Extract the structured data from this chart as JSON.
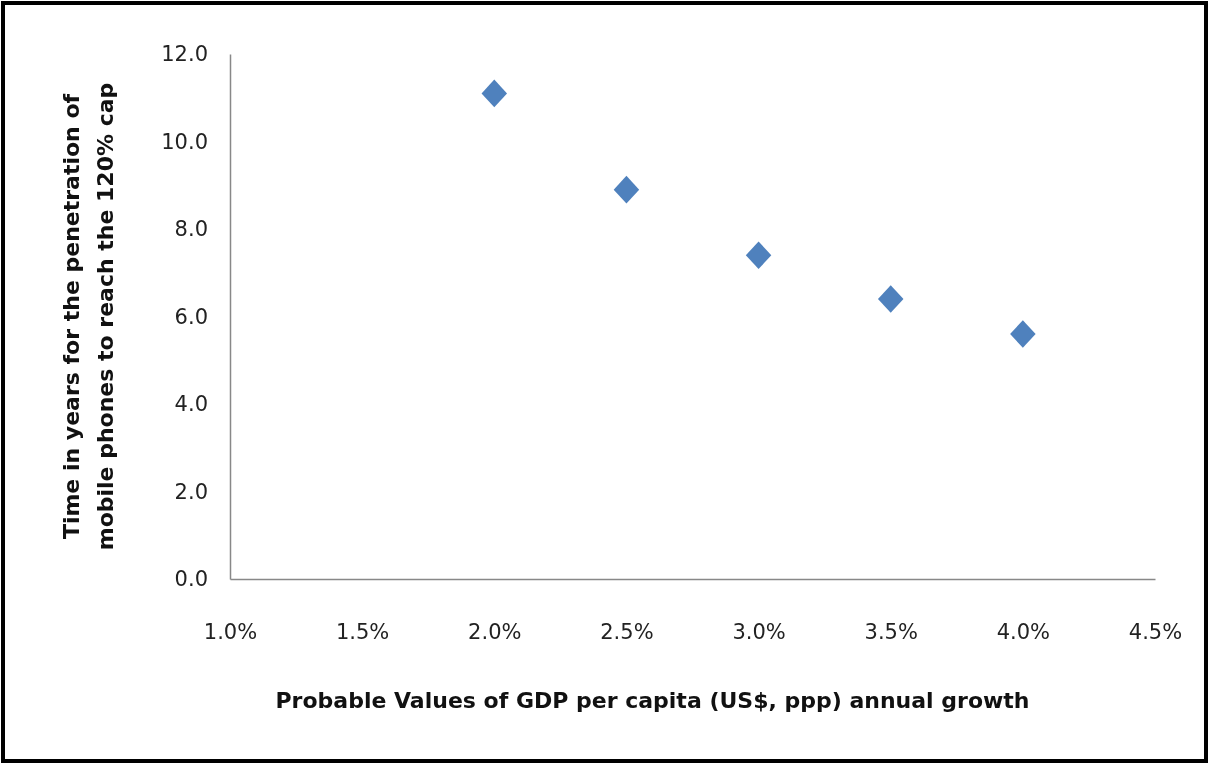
{
  "chart_data": {
    "type": "scatter",
    "xlabel": "Probable Values of GDP per capita (US$, ppp) annual growth",
    "ylabel": "Time in years for the penetration of mobile phones to reach the 120% cap",
    "x": [
      2.0,
      2.5,
      3.0,
      3.5,
      4.0
    ],
    "series": [
      {
        "color": "#4f81bd",
        "values": [
          11.1,
          8.9,
          7.4,
          6.4,
          5.6
        ]
      }
    ],
    "marker": "diamond",
    "xlim": [
      1.0,
      4.5
    ],
    "xticks": [
      {
        "value": 1.0,
        "label": "1.0%"
      },
      {
        "value": 1.5,
        "label": "1.5%"
      },
      {
        "value": 2.0,
        "label": "2.0%"
      },
      {
        "value": 2.5,
        "label": "2.5%"
      },
      {
        "value": 3.0,
        "label": "3.0%"
      },
      {
        "value": 3.5,
        "label": "3.5%"
      },
      {
        "value": 4.0,
        "label": "4.0%"
      },
      {
        "value": 4.5,
        "label": "4.5%"
      }
    ],
    "ylim": [
      0,
      12
    ],
    "yticks": [
      {
        "value": 0,
        "label": "0.0"
      },
      {
        "value": 2,
        "label": "2.0"
      },
      {
        "value": 4,
        "label": "4.0"
      },
      {
        "value": 6,
        "label": "6.0"
      },
      {
        "value": 8,
        "label": "8.0"
      },
      {
        "value": 10,
        "label": "10.0"
      },
      {
        "value": 12,
        "label": "12.0"
      }
    ],
    "grid": false
  }
}
